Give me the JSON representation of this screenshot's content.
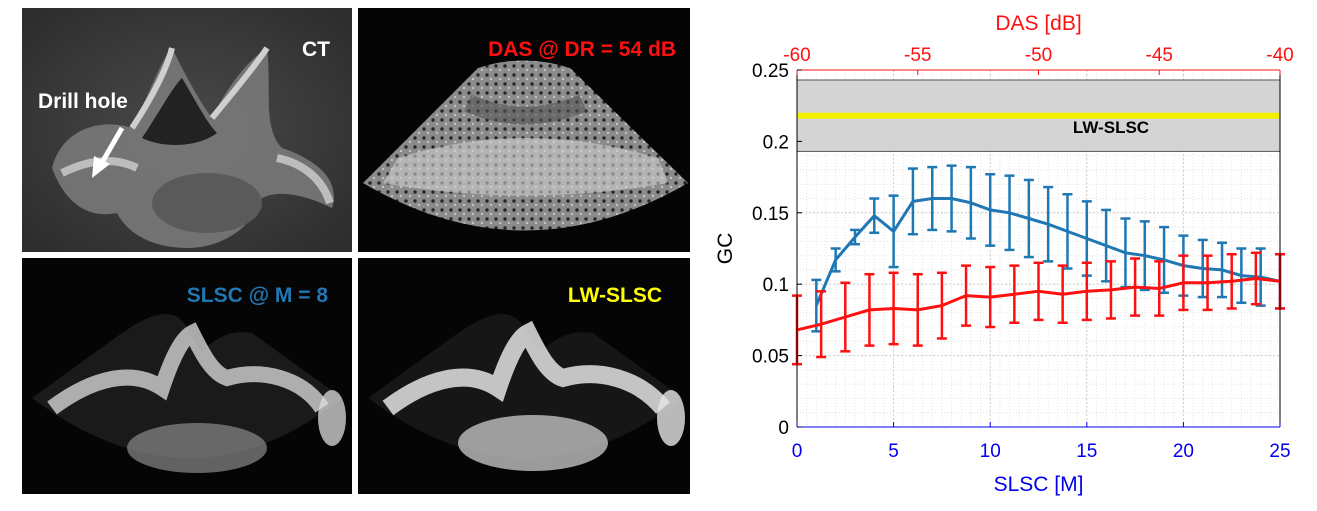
{
  "panels": {
    "ct": {
      "label": "CT",
      "annotation": "Drill hole"
    },
    "das": {
      "label": "DAS @ DR = 54 dB"
    },
    "slsc": {
      "label": "SLSC @ M = 8"
    },
    "lwslsc": {
      "label": "LW-SLSC"
    }
  },
  "colors": {
    "das": "#ff1010",
    "slsc": "#1f77b4",
    "lwslsc_label": "#ffff00",
    "bottom_axis": "#0000ee",
    "band": "#d4d4d4",
    "band_line": "#f5f000"
  },
  "chart_data": {
    "type": "line",
    "ylabel": "GC",
    "xlabel": "SLSC [M]",
    "x2label": "DAS [dB]",
    "xlim": [
      0,
      25
    ],
    "x2lim": [
      -60,
      -40
    ],
    "ylim": [
      0,
      0.25
    ],
    "xticks": [
      "0",
      "5",
      "10",
      "15",
      "20",
      "25"
    ],
    "x2ticks": [
      "-60",
      "-55",
      "-50",
      "-45",
      "-40"
    ],
    "yticks": [
      "0",
      "0.05",
      "0.1",
      "0.15",
      "0.2",
      "0.25"
    ],
    "grid": true,
    "band": {
      "name": "LW-SLSC",
      "label": "LW-SLSC",
      "low": 0.193,
      "high": 0.243,
      "value": 0.218
    },
    "series": [
      {
        "name": "SLSC",
        "axis": "bottom",
        "x": [
          1,
          2,
          3,
          4,
          5,
          6,
          7,
          8,
          9,
          10,
          11,
          12,
          13,
          14,
          15,
          16,
          17,
          18,
          19,
          20,
          21,
          22,
          23,
          24,
          25
        ],
        "y": [
          0.085,
          0.117,
          0.133,
          0.148,
          0.137,
          0.158,
          0.16,
          0.16,
          0.157,
          0.152,
          0.15,
          0.146,
          0.142,
          0.137,
          0.132,
          0.127,
          0.122,
          0.12,
          0.117,
          0.113,
          0.111,
          0.11,
          0.106,
          0.105,
          0.102
        ],
        "err": [
          0.018,
          0.008,
          0.005,
          0.012,
          0.025,
          0.023,
          0.022,
          0.023,
          0.025,
          0.025,
          0.026,
          0.027,
          0.026,
          0.026,
          0.026,
          0.025,
          0.024,
          0.024,
          0.023,
          0.021,
          0.02,
          0.019,
          0.019,
          0.02,
          0.019
        ]
      },
      {
        "name": "DAS",
        "axis": "top",
        "x": [
          -60,
          -59,
          -58,
          -57,
          -56,
          -55,
          -54,
          -53,
          -52,
          -51,
          -50,
          -49,
          -48,
          -47,
          -46,
          -45,
          -44,
          -43,
          -42,
          -41,
          -40
        ],
        "y": [
          0.068,
          0.072,
          0.077,
          0.082,
          0.083,
          0.082,
          0.085,
          0.092,
          0.091,
          0.093,
          0.095,
          0.093,
          0.095,
          0.096,
          0.098,
          0.097,
          0.101,
          0.101,
          0.102,
          0.104,
          0.102
        ],
        "err": [
          0.024,
          0.023,
          0.024,
          0.025,
          0.025,
          0.025,
          0.023,
          0.021,
          0.021,
          0.02,
          0.02,
          0.02,
          0.02,
          0.02,
          0.02,
          0.019,
          0.019,
          0.019,
          0.019,
          0.018,
          0.019
        ]
      }
    ]
  }
}
